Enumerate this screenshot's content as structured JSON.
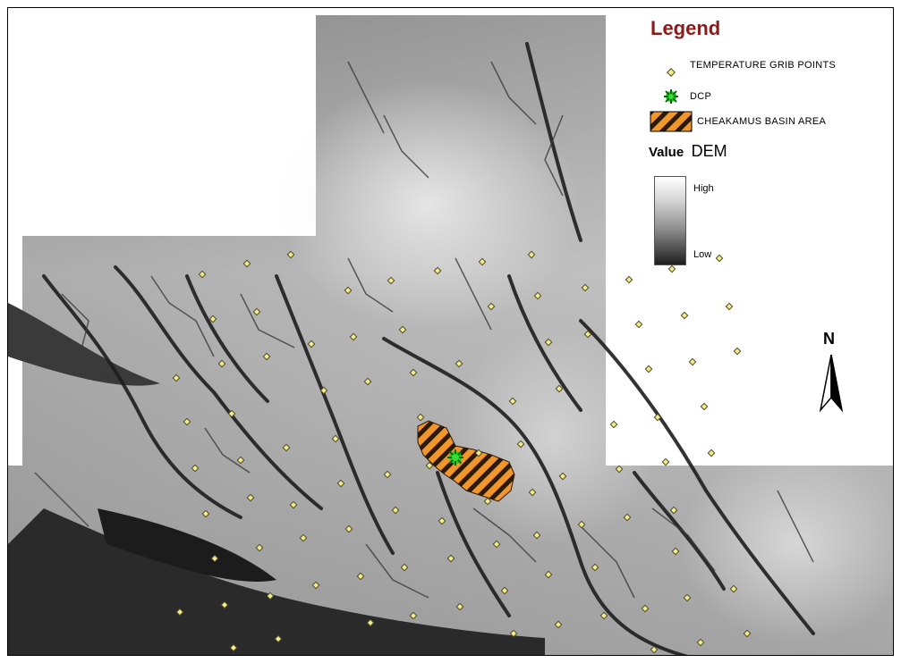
{
  "legend": {
    "title": "Legend",
    "items": [
      {
        "label": "TEMPERATURE GRIB POINTS",
        "symbol": "yellow-diamond"
      },
      {
        "label": "DCP",
        "symbol": "green-asterisk"
      },
      {
        "label": "CHEAKAMUS BASIN AREA",
        "symbol": "orange-hatched-polygon"
      }
    ],
    "value_label": "Value",
    "dem_label": "DEM",
    "ramp_high": "High",
    "ramp_low": "Low"
  },
  "north_arrow": {
    "label": "N"
  },
  "colors": {
    "grib_point_fill": "#f4ec8a",
    "grib_point_outline": "#4a4a2a",
    "dcp_green": "#22cc22",
    "basin_orange": "#f0962a",
    "legend_title": "#8b1a1a"
  }
}
